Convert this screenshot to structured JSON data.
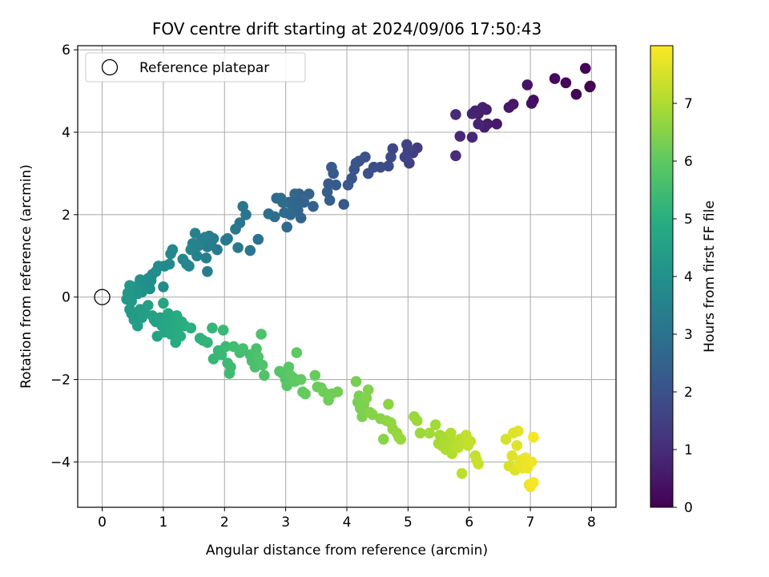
{
  "chart_data": {
    "type": "scatter",
    "title": "FOV centre drift starting at 2024/09/06 17:50:43",
    "xlabel": "Angular distance from reference (arcmin)",
    "ylabel": "Rotation from reference (arcmin)",
    "xlim": [
      -0.4,
      8.4
    ],
    "ylim": [
      -5.1,
      6.1
    ],
    "xticks": [
      0,
      1,
      2,
      3,
      4,
      5,
      6,
      7,
      8
    ],
    "yticks": [
      -4,
      -2,
      0,
      2,
      4,
      6
    ],
    "grid": true,
    "legend": {
      "placement": "upper-left",
      "entries": [
        "Reference platepar"
      ]
    },
    "reference_point": {
      "x": 0,
      "y": 0,
      "label": "Reference platepar"
    },
    "colorbar": {
      "label": "Hours from first FF file",
      "range": [
        0,
        8.0
      ],
      "ticks": [
        0,
        1,
        2,
        3,
        4,
        5,
        6,
        7
      ],
      "colormap": "viridis"
    },
    "points": [
      [
        7.9,
        5.55,
        0.05
      ],
      [
        7.97,
        5.1,
        0.05
      ],
      [
        7.98,
        5.12,
        0.05
      ],
      [
        7.75,
        4.92,
        0.1
      ],
      [
        7.58,
        5.2,
        0.15
      ],
      [
        7.4,
        5.3,
        0.2
      ],
      [
        7.05,
        4.78,
        0.3
      ],
      [
        7.02,
        4.7,
        0.35
      ],
      [
        6.95,
        5.15,
        0.4
      ],
      [
        6.72,
        4.68,
        0.45
      ],
      [
        6.65,
        4.6,
        0.5
      ],
      [
        6.45,
        4.2,
        0.6
      ],
      [
        6.3,
        4.2,
        0.65
      ],
      [
        6.25,
        4.12,
        0.7
      ],
      [
        6.15,
        4.45,
        0.7
      ],
      [
        6.22,
        4.6,
        0.75
      ],
      [
        6.05,
        4.45,
        0.8
      ],
      [
        6.15,
        4.2,
        0.8
      ],
      [
        6.05,
        3.88,
        0.85
      ],
      [
        5.85,
        3.9,
        0.9
      ],
      [
        5.78,
        4.43,
        0.95
      ],
      [
        5.78,
        3.43,
        1.0
      ],
      [
        6.28,
        4.55,
        0.7
      ],
      [
        6.1,
        4.52,
        0.75
      ],
      [
        5.15,
        3.62,
        1.4
      ],
      [
        5.08,
        3.5,
        1.45
      ],
      [
        5.02,
        3.25,
        1.5
      ],
      [
        4.98,
        3.7,
        1.5
      ],
      [
        5.0,
        3.55,
        1.55
      ],
      [
        4.95,
        3.4,
        1.6
      ],
      [
        4.75,
        3.6,
        1.7
      ],
      [
        4.72,
        3.4,
        1.75
      ],
      [
        4.68,
        3.18,
        1.8
      ],
      [
        4.55,
        3.15,
        1.85
      ],
      [
        4.44,
        3.15,
        1.9
      ],
      [
        4.35,
        3.0,
        1.95
      ],
      [
        4.3,
        3.4,
        2.0
      ],
      [
        4.2,
        3.3,
        2.0
      ],
      [
        4.15,
        3.25,
        2.05
      ],
      [
        4.08,
        2.88,
        2.1
      ],
      [
        4.12,
        3.1,
        2.1
      ],
      [
        4.02,
        2.72,
        2.15
      ],
      [
        3.95,
        2.25,
        2.2
      ],
      [
        3.82,
        2.72,
        2.25
      ],
      [
        3.78,
        3.0,
        2.25
      ],
      [
        3.75,
        3.15,
        2.3
      ],
      [
        3.7,
        2.75,
        2.3
      ],
      [
        3.68,
        2.55,
        2.35
      ],
      [
        3.72,
        2.35,
        2.4
      ],
      [
        3.45,
        2.2,
        2.5
      ],
      [
        3.38,
        2.5,
        2.5
      ],
      [
        3.22,
        2.5,
        2.55
      ],
      [
        3.2,
        2.1,
        2.6
      ],
      [
        3.18,
        2.28,
        2.6
      ],
      [
        3.15,
        2.5,
        2.65
      ],
      [
        3.12,
        2.2,
        2.65
      ],
      [
        3.08,
        2.0,
        2.7
      ],
      [
        3.05,
        2.3,
        2.7
      ],
      [
        3.02,
        1.7,
        2.75
      ],
      [
        2.98,
        2.05,
        2.75
      ],
      [
        2.95,
        2.3,
        2.8
      ],
      [
        2.92,
        2.4,
        2.8
      ],
      [
        2.85,
        2.4,
        2.85
      ],
      [
        2.82,
        1.95,
        2.85
      ],
      [
        2.72,
        2.02,
        2.9
      ],
      [
        3.25,
        1.92,
        2.6
      ],
      [
        3.3,
        2.3,
        2.55
      ],
      [
        2.55,
        1.4,
        3.0
      ],
      [
        2.42,
        1.13,
        3.05
      ],
      [
        2.35,
        2.0,
        3.05
      ],
      [
        2.3,
        2.2,
        3.1
      ],
      [
        2.25,
        1.8,
        3.1
      ],
      [
        2.22,
        1.2,
        3.15
      ],
      [
        2.18,
        1.65,
        3.15
      ],
      [
        2.05,
        1.42,
        3.2
      ],
      [
        2.02,
        1.38,
        3.2
      ],
      [
        1.88,
        1.15,
        3.25
      ],
      [
        1.82,
        1.42,
        3.3
      ],
      [
        1.78,
        1.3,
        3.3
      ],
      [
        1.75,
        1.48,
        3.35
      ],
      [
        1.72,
        1.22,
        3.35
      ],
      [
        1.7,
        0.95,
        3.4
      ],
      [
        1.72,
        0.62,
        3.4
      ],
      [
        1.68,
        1.45,
        3.45
      ],
      [
        1.62,
        1.38,
        3.45
      ],
      [
        1.58,
        1.25,
        3.5
      ],
      [
        1.55,
        1.0,
        3.5
      ],
      [
        1.52,
        1.55,
        3.55
      ],
      [
        1.48,
        1.3,
        3.55
      ],
      [
        1.45,
        1.15,
        3.6
      ],
      [
        1.42,
        0.75,
        3.6
      ],
      [
        1.38,
        0.8,
        3.65
      ],
      [
        1.32,
        0.92,
        3.65
      ],
      [
        1.15,
        1.15,
        3.7
      ],
      [
        1.12,
        1.05,
        3.7
      ],
      [
        1.1,
        0.8,
        3.75
      ],
      [
        1.02,
        0.75,
        3.75
      ],
      [
        1.0,
        0.25,
        3.8
      ],
      [
        0.92,
        0.75,
        3.8
      ],
      [
        0.88,
        0.62,
        3.85
      ],
      [
        0.82,
        0.55,
        3.85
      ],
      [
        0.8,
        0.4,
        3.9
      ],
      [
        0.78,
        0.2,
        3.9
      ],
      [
        0.75,
        0.45,
        3.95
      ],
      [
        0.72,
        0.35,
        3.95
      ],
      [
        0.68,
        0.18,
        4.0
      ],
      [
        0.65,
        0.12,
        4.0
      ],
      [
        0.62,
        0.42,
        4.05
      ],
      [
        0.6,
        0.3,
        4.05
      ],
      [
        0.58,
        0.08,
        4.1
      ],
      [
        0.55,
        0.25,
        4.1
      ],
      [
        0.52,
        0.18,
        4.15
      ],
      [
        0.5,
        0.05,
        4.15
      ],
      [
        0.48,
        -0.1,
        4.2
      ],
      [
        0.45,
        0.28,
        4.2
      ],
      [
        0.42,
        0.1,
        4.25
      ],
      [
        0.4,
        -0.05,
        4.25
      ],
      [
        0.45,
        -0.3,
        4.3
      ],
      [
        0.48,
        -0.4,
        4.3
      ],
      [
        0.55,
        -0.45,
        4.35
      ],
      [
        0.52,
        -0.55,
        4.35
      ],
      [
        0.58,
        -0.7,
        4.4
      ],
      [
        0.62,
        -0.3,
        4.4
      ],
      [
        0.65,
        -0.5,
        4.45
      ],
      [
        0.7,
        -0.4,
        4.45
      ],
      [
        0.75,
        -0.2,
        4.5
      ],
      [
        0.82,
        -0.45,
        4.5
      ],
      [
        0.85,
        -0.55,
        4.55
      ],
      [
        0.88,
        -0.6,
        4.55
      ],
      [
        0.9,
        -0.95,
        4.6
      ],
      [
        0.95,
        -0.5,
        4.6
      ],
      [
        0.98,
        -0.7,
        4.65
      ],
      [
        1.0,
        -0.15,
        4.65
      ],
      [
        1.02,
        -0.85,
        4.7
      ],
      [
        1.05,
        -0.55,
        4.7
      ],
      [
        1.08,
        -0.4,
        4.75
      ],
      [
        1.1,
        -0.7,
        4.75
      ],
      [
        1.12,
        -0.9,
        4.8
      ],
      [
        1.15,
        -0.6,
        4.8
      ],
      [
        1.18,
        -0.8,
        4.85
      ],
      [
        1.2,
        -1.1,
        4.85
      ],
      [
        1.22,
        -0.45,
        4.9
      ],
      [
        1.25,
        -0.75,
        4.9
      ],
      [
        1.28,
        -0.95,
        4.95
      ],
      [
        1.3,
        -0.6,
        4.95
      ],
      [
        1.35,
        -0.7,
        5.0
      ],
      [
        1.45,
        -0.75,
        5.05
      ],
      [
        1.6,
        -1.0,
        5.1
      ],
      [
        1.65,
        -1.05,
        5.15
      ],
      [
        1.72,
        -1.1,
        5.2
      ],
      [
        1.8,
        -0.75,
        5.25
      ],
      [
        1.82,
        -1.5,
        5.3
      ],
      [
        1.9,
        -1.3,
        5.3
      ],
      [
        1.95,
        -1.4,
        5.35
      ],
      [
        1.98,
        -0.8,
        5.35
      ],
      [
        2.02,
        -1.2,
        5.4
      ],
      [
        2.05,
        -1.6,
        5.4
      ],
      [
        2.08,
        -1.85,
        5.45
      ],
      [
        2.1,
        -1.7,
        5.45
      ],
      [
        2.15,
        -1.2,
        5.5
      ],
      [
        2.25,
        -1.35,
        5.5
      ],
      [
        2.3,
        -1.25,
        5.55
      ],
      [
        2.42,
        -1.4,
        5.6
      ],
      [
        2.45,
        -1.55,
        5.6
      ],
      [
        2.5,
        -1.7,
        5.65
      ],
      [
        2.52,
        -1.25,
        5.65
      ],
      [
        2.55,
        -1.45,
        5.7
      ],
      [
        2.6,
        -0.9,
        5.7
      ],
      [
        2.62,
        -1.65,
        5.75
      ],
      [
        2.65,
        -1.9,
        5.75
      ],
      [
        2.9,
        -1.8,
        5.8
      ],
      [
        2.95,
        -1.85,
        5.85
      ],
      [
        3.0,
        -2.0,
        5.85
      ],
      [
        3.02,
        -2.15,
        5.9
      ],
      [
        3.05,
        -1.7,
        5.9
      ],
      [
        3.08,
        -1.9,
        5.95
      ],
      [
        3.12,
        -1.95,
        5.95
      ],
      [
        3.15,
        -2.05,
        6.0
      ],
      [
        3.18,
        -1.35,
        6.0
      ],
      [
        3.25,
        -2.0,
        6.05
      ],
      [
        3.28,
        -2.3,
        6.05
      ],
      [
        3.32,
        -2.35,
        6.1
      ],
      [
        3.48,
        -1.9,
        6.1
      ],
      [
        3.52,
        -2.18,
        6.15
      ],
      [
        3.58,
        -2.2,
        6.15
      ],
      [
        3.62,
        -2.3,
        6.2
      ],
      [
        3.7,
        -2.5,
        6.2
      ],
      [
        3.75,
        -2.35,
        6.25
      ],
      [
        3.85,
        -2.3,
        6.25
      ],
      [
        4.15,
        -2.05,
        6.3
      ],
      [
        4.18,
        -2.55,
        6.3
      ],
      [
        4.2,
        -2.4,
        6.35
      ],
      [
        4.22,
        -2.7,
        6.35
      ],
      [
        4.25,
        -2.9,
        6.4
      ],
      [
        4.28,
        -2.6,
        6.4
      ],
      [
        4.32,
        -2.45,
        6.45
      ],
      [
        4.35,
        -2.25,
        6.45
      ],
      [
        4.38,
        -2.8,
        6.5
      ],
      [
        4.42,
        -2.85,
        6.5
      ],
      [
        4.55,
        -2.95,
        6.55
      ],
      [
        4.6,
        -3.45,
        6.55
      ],
      [
        4.65,
        -3.0,
        6.6
      ],
      [
        4.68,
        -2.6,
        6.6
      ],
      [
        4.72,
        -3.05,
        6.65
      ],
      [
        4.75,
        -3.2,
        6.65
      ],
      [
        4.82,
        -3.3,
        6.7
      ],
      [
        4.85,
        -3.4,
        6.7
      ],
      [
        4.88,
        -3.45,
        6.75
      ],
      [
        5.1,
        -2.9,
        6.75
      ],
      [
        5.15,
        -3.0,
        6.8
      ],
      [
        5.2,
        -3.3,
        6.8
      ],
      [
        5.35,
        -3.3,
        6.85
      ],
      [
        5.45,
        -3.1,
        6.85
      ],
      [
        5.5,
        -3.55,
        6.9
      ],
      [
        5.52,
        -3.35,
        6.9
      ],
      [
        5.55,
        -3.6,
        6.95
      ],
      [
        5.6,
        -3.4,
        6.95
      ],
      [
        5.62,
        -3.7,
        7.0
      ],
      [
        5.65,
        -3.5,
        7.0
      ],
      [
        5.7,
        -3.3,
        7.05
      ],
      [
        5.72,
        -3.8,
        7.05
      ],
      [
        5.75,
        -3.6,
        7.1
      ],
      [
        5.8,
        -3.5,
        7.1
      ],
      [
        5.82,
        -3.65,
        7.15
      ],
      [
        5.85,
        -3.45,
        7.15
      ],
      [
        5.88,
        -4.28,
        7.2
      ],
      [
        5.9,
        -3.55,
        7.2
      ],
      [
        5.95,
        -3.35,
        7.25
      ],
      [
        5.98,
        -3.6,
        7.25
      ],
      [
        6.02,
        -3.5,
        7.3
      ],
      [
        6.1,
        -3.85,
        7.3
      ],
      [
        6.12,
        -3.95,
        7.35
      ],
      [
        6.15,
        -4.05,
        7.35
      ],
      [
        6.6,
        -3.45,
        7.5
      ],
      [
        6.65,
        -4.1,
        7.55
      ],
      [
        6.7,
        -3.85,
        7.6
      ],
      [
        6.75,
        -4.2,
        7.6
      ],
      [
        6.78,
        -3.6,
        7.65
      ],
      [
        6.8,
        -3.25,
        7.65
      ],
      [
        6.82,
        -4.05,
        7.7
      ],
      [
        6.85,
        -3.95,
        7.7
      ],
      [
        6.88,
        -4.15,
        7.75
      ],
      [
        6.9,
        -4.05,
        7.75
      ],
      [
        6.95,
        -4.15,
        7.8
      ],
      [
        6.98,
        -4.55,
        7.8
      ],
      [
        7.0,
        -4.6,
        7.85
      ],
      [
        7.02,
        -4.0,
        7.85
      ],
      [
        7.05,
        -3.4,
        7.9
      ],
      [
        7.05,
        -4.5,
        7.9
      ],
      [
        6.92,
        -3.9,
        7.8
      ],
      [
        6.72,
        -3.3,
        7.6
      ]
    ]
  }
}
